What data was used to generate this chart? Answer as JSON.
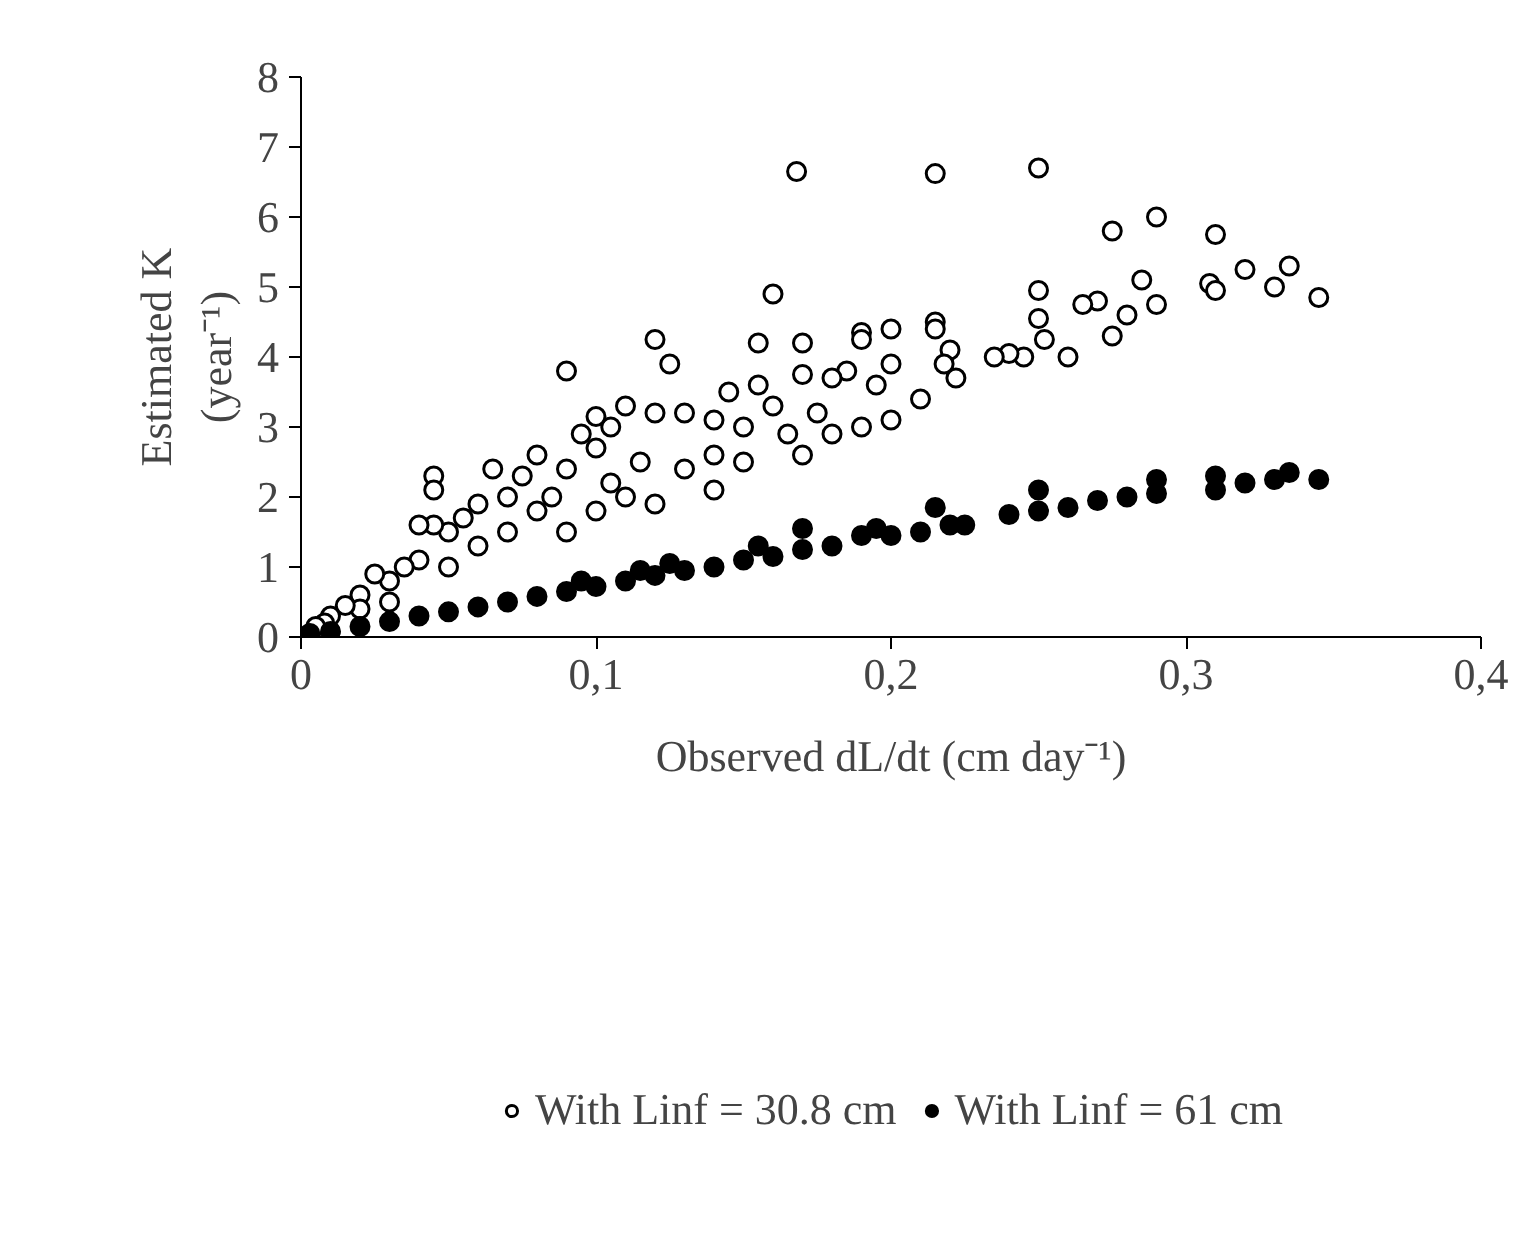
{
  "chart_data": {
    "type": "scatter",
    "xlabel": "Observed dL/dt (cm day⁻¹)",
    "ylabel": "Estimated K\n(year⁻¹)",
    "xlim": [
      0,
      0.4
    ],
    "ylim": [
      0,
      8
    ],
    "xticks": [
      0,
      {
        "value": 0.1,
        "label": "0,1"
      },
      {
        "value": 0.2,
        "label": "0,2"
      },
      {
        "value": 0.3,
        "label": "0,3"
      },
      {
        "value": 0.4,
        "label": "0,4"
      }
    ],
    "yticks": [
      0,
      1,
      2,
      3,
      4,
      5,
      6,
      7,
      8
    ],
    "grid": false,
    "legend": "bottom",
    "marker": "circle",
    "series": [
      {
        "name": "With Linf = 30.8 cm",
        "color": "#ffffff",
        "x": [
          0.168,
          0.215,
          0.25,
          0.29,
          0.31,
          0.275,
          0.32,
          0.335,
          0.345,
          0.308,
          0.31,
          0.33,
          0.285,
          0.28,
          0.29,
          0.27,
          0.265,
          0.275,
          0.26,
          0.25,
          0.25,
          0.252,
          0.245,
          0.24,
          0.235,
          0.222,
          0.22,
          0.215,
          0.215,
          0.218,
          0.21,
          0.2,
          0.19,
          0.19,
          0.2,
          0.195,
          0.2,
          0.19,
          0.185,
          0.18,
          0.175,
          0.17,
          0.17,
          0.16,
          0.155,
          0.155,
          0.16,
          0.165,
          0.17,
          0.15,
          0.145,
          0.14,
          0.14,
          0.13,
          0.13,
          0.125,
          0.12,
          0.12,
          0.115,
          0.11,
          0.105,
          0.105,
          0.1,
          0.1,
          0.095,
          0.09,
          0.09,
          0.085,
          0.08,
          0.08,
          0.075,
          0.07,
          0.07,
          0.065,
          0.06,
          0.06,
          0.055,
          0.05,
          0.05,
          0.045,
          0.045,
          0.045,
          0.04,
          0.04,
          0.035,
          0.03,
          0.03,
          0.025,
          0.02,
          0.02,
          0.015,
          0.01,
          0.008,
          0.005,
          0.1,
          0.12,
          0.14,
          0.15,
          0.18,
          0.11,
          0.09
        ],
        "values": [
          6.65,
          6.62,
          6.7,
          6.0,
          5.75,
          5.8,
          5.25,
          5.3,
          4.85,
          5.05,
          4.95,
          5.0,
          5.1,
          4.6,
          4.75,
          4.8,
          4.75,
          4.3,
          4.0,
          4.95,
          4.55,
          4.25,
          4.0,
          4.05,
          4.0,
          3.7,
          4.1,
          4.5,
          4.4,
          3.9,
          3.4,
          4.4,
          4.35,
          4.25,
          3.9,
          3.6,
          3.1,
          3.0,
          3.8,
          3.7,
          3.2,
          3.75,
          4.2,
          4.9,
          4.2,
          3.6,
          3.3,
          2.9,
          2.6,
          3.0,
          3.5,
          3.1,
          2.6,
          3.2,
          2.4,
          3.9,
          4.25,
          3.2,
          2.5,
          3.3,
          3.0,
          2.2,
          3.15,
          2.7,
          2.9,
          3.8,
          2.4,
          2.0,
          2.6,
          1.8,
          2.3,
          2.0,
          1.5,
          2.4,
          1.9,
          1.3,
          1.7,
          1.5,
          1.0,
          2.3,
          2.1,
          1.6,
          1.6,
          1.1,
          1.0,
          0.8,
          0.5,
          0.9,
          0.6,
          0.4,
          0.45,
          0.3,
          0.2,
          0.15,
          1.8,
          1.9,
          2.1,
          2.5,
          2.9,
          2.0,
          1.5
        ]
      },
      {
        "name": "With Linf = 61 cm",
        "color": "#000000",
        "x": [
          0.003,
          0.01,
          0.02,
          0.03,
          0.04,
          0.05,
          0.06,
          0.07,
          0.08,
          0.09,
          0.095,
          0.1,
          0.11,
          0.115,
          0.12,
          0.125,
          0.13,
          0.14,
          0.15,
          0.155,
          0.16,
          0.17,
          0.17,
          0.18,
          0.19,
          0.195,
          0.2,
          0.21,
          0.215,
          0.22,
          0.225,
          0.24,
          0.25,
          0.25,
          0.26,
          0.27,
          0.28,
          0.29,
          0.29,
          0.31,
          0.31,
          0.32,
          0.33,
          0.335,
          0.345
        ],
        "values": [
          0.05,
          0.08,
          0.15,
          0.22,
          0.3,
          0.36,
          0.43,
          0.5,
          0.58,
          0.65,
          0.8,
          0.72,
          0.8,
          0.95,
          0.88,
          1.05,
          0.95,
          1.0,
          1.1,
          1.3,
          1.15,
          1.25,
          1.55,
          1.3,
          1.45,
          1.55,
          1.45,
          1.5,
          1.85,
          1.6,
          1.6,
          1.75,
          1.8,
          2.1,
          1.85,
          1.95,
          2.0,
          2.05,
          2.25,
          2.3,
          2.1,
          2.2,
          2.25,
          2.35,
          2.25
        ]
      }
    ]
  }
}
